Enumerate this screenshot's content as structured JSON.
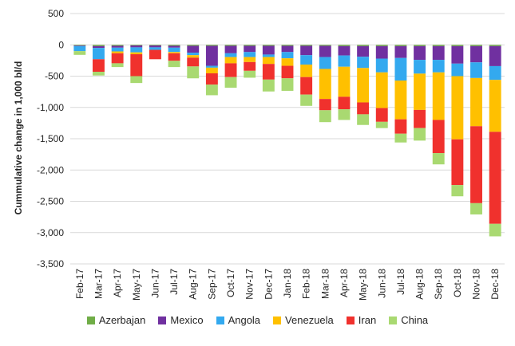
{
  "chart_data": {
    "type": "bar",
    "stacked": true,
    "title": "",
    "xlabel": "",
    "ylabel": "Cummulative change in 1,000 bl/d",
    "ylim": [
      -3500,
      500
    ],
    "yticks": [
      500,
      0,
      -500,
      -1000,
      -1500,
      -2000,
      -2500,
      -3000,
      -3500
    ],
    "ytick_labels": [
      "500",
      "0",
      "-500",
      "-1,000",
      "-1,500",
      "-2,000",
      "-2,500",
      "-3,000",
      "-3,500"
    ],
    "categories": [
      "Feb-17",
      "Mar-17",
      "Apr-17",
      "May-17",
      "Jun-17",
      "Jul-17",
      "Aug-17",
      "Sep-17",
      "Oct-17",
      "Nov-17",
      "Dec-17",
      "Jan-18",
      "Feb-18",
      "Mar-18",
      "Apr-18",
      "May-18",
      "Jun-18",
      "Jul-18",
      "Aug-18",
      "Sep-18",
      "Oct-18",
      "Nov-18",
      "Dec-18"
    ],
    "legend_position": "bottom",
    "series": [
      {
        "name": "Azerbajan",
        "color": "#70AD47",
        "values": [
          -10,
          -20,
          -15,
          -10,
          -10,
          -15,
          -15,
          -15,
          -15,
          -15,
          -15,
          -15,
          -15,
          -15,
          -20,
          -20,
          -20,
          -20,
          -20,
          -20,
          -20,
          -20,
          -20
        ]
      },
      {
        "name": "Mexico",
        "color": "#7030A0",
        "values": [
          -10,
          -30,
          -30,
          -30,
          -30,
          -30,
          -110,
          -320,
          -120,
          -100,
          -140,
          -100,
          -150,
          -180,
          -150,
          -170,
          -200,
          -190,
          -220,
          -220,
          -280,
          -260,
          -320
        ]
      },
      {
        "name": "Angola",
        "color": "#33A9EF",
        "values": [
          -80,
          -180,
          -60,
          -80,
          -40,
          -70,
          -40,
          -30,
          -60,
          -80,
          -40,
          -100,
          -150,
          -190,
          -180,
          -180,
          -220,
          -360,
          -220,
          -200,
          -200,
          -250,
          -220
        ]
      },
      {
        "name": "Venezuela",
        "color": "#FFC000",
        "values": [
          0,
          0,
          -30,
          -30,
          0,
          -20,
          -40,
          -90,
          -100,
          -80,
          -110,
          -120,
          -200,
          -480,
          -480,
          -550,
          -570,
          -620,
          -580,
          -760,
          -1010,
          -770,
          -830
        ]
      },
      {
        "name": "Iran",
        "color": "#F0312D",
        "values": [
          0,
          -200,
          -160,
          -350,
          -150,
          -120,
          -140,
          -180,
          -220,
          -140,
          -250,
          -200,
          -280,
          -180,
          -200,
          -190,
          -220,
          -230,
          -290,
          -530,
          -730,
          -1230,
          -1470
        ]
      },
      {
        "name": "China",
        "color": "#A9D971",
        "values": [
          -60,
          -60,
          -60,
          -110,
          0,
          -100,
          -190,
          -170,
          -170,
          -110,
          -190,
          -200,
          -180,
          -190,
          -170,
          -170,
          -100,
          -140,
          -200,
          -180,
          -180,
          -180,
          -200
        ]
      }
    ]
  }
}
